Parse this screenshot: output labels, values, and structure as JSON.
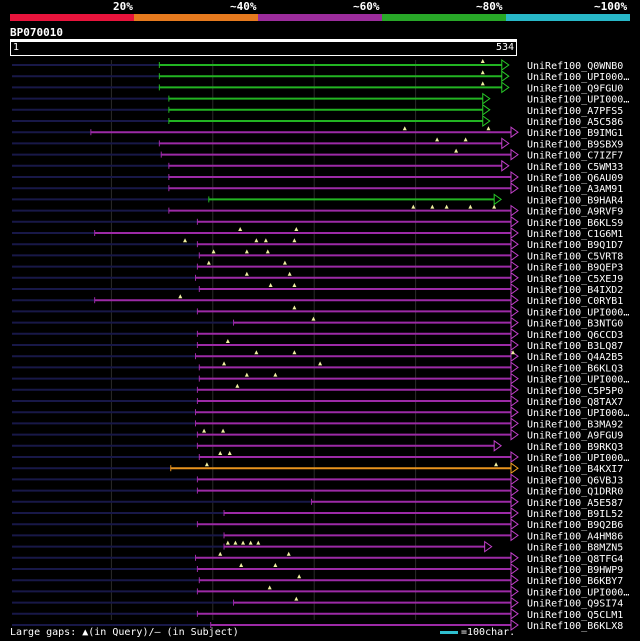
{
  "scale": {
    "ticks": [
      "20%",
      "~40%",
      "~60%",
      "~80%",
      "~100%"
    ],
    "colors": [
      "#e8143c",
      "#e67a1e",
      "#9c2c9c",
      "#28a828",
      "#28b8c8"
    ]
  },
  "query": {
    "name": "BP070010",
    "start": "1",
    "end": "534",
    "length": 534
  },
  "legend": {
    "gaps_text": "Large gaps: ▲(in Query)/– (in Subject)",
    "scale_text": "=100char."
  },
  "hits": [
    {
      "name": "UniRef100_Q0WNB0",
      "q_start": 158,
      "q_end": 518,
      "color": "green",
      "arrow": "green",
      "marks": [
        498
      ]
    },
    {
      "name": "UniRef100_UPI000…",
      "q_start": 158,
      "q_end": 518,
      "color": "green",
      "arrow": "green",
      "marks": [
        498
      ]
    },
    {
      "name": "UniRef100_Q9FGU0",
      "q_start": 158,
      "q_end": 518,
      "color": "green",
      "arrow": "green",
      "marks": [
        498
      ]
    },
    {
      "name": "UniRef100_UPI000…",
      "q_start": 168,
      "q_end": 498,
      "color": "green",
      "arrow": "green",
      "marks": []
    },
    {
      "name": "UniRef100_A7PFS5",
      "q_start": 168,
      "q_end": 498,
      "color": "green",
      "arrow": "green",
      "marks": []
    },
    {
      "name": "UniRef100_A5C586",
      "q_start": 168,
      "q_end": 498,
      "color": "green",
      "arrow": "green",
      "marks": []
    },
    {
      "name": "UniRef100_B9IMG1",
      "q_start": 86,
      "q_end": 534,
      "color": "purple",
      "arrow": "magenta",
      "marks": [
        416,
        504
      ]
    },
    {
      "name": "UniRef100_B9SBX9",
      "q_start": 158,
      "q_end": 518,
      "color": "purple",
      "arrow": "magenta",
      "marks": [
        450,
        480
      ]
    },
    {
      "name": "UniRef100_C7IZF7",
      "q_start": 160,
      "q_end": 534,
      "color": "purple",
      "arrow": "magenta",
      "marks": [
        470
      ]
    },
    {
      "name": "UniRef100_C5WM33",
      "q_start": 168,
      "q_end": 518,
      "color": "purple",
      "arrow": "magenta",
      "marks": []
    },
    {
      "name": "UniRef100_Q6AU09",
      "q_start": 168,
      "q_end": 534,
      "color": "purple",
      "arrow": "magenta",
      "marks": []
    },
    {
      "name": "UniRef100_A3AM91",
      "q_start": 168,
      "q_end": 534,
      "color": "purple",
      "arrow": "magenta",
      "marks": []
    },
    {
      "name": "UniRef100_B9HAR4",
      "q_start": 210,
      "q_end": 510,
      "color": "green",
      "arrow": "green",
      "marks": []
    },
    {
      "name": "UniRef100_A9RVF9",
      "q_start": 168,
      "q_end": 540,
      "color": "purple",
      "arrow": "magenta",
      "marks": [
        425,
        445,
        460,
        485,
        510
      ]
    },
    {
      "name": "UniRef100_B6KLS9",
      "q_start": 198,
      "q_end": 540,
      "color": "purple",
      "arrow": "magenta",
      "marks": []
    },
    {
      "name": "UniRef100_C1G6M1",
      "q_start": 90,
      "q_end": 534,
      "color": "purple",
      "arrow": "magenta",
      "marks": [
        243,
        302
      ]
    },
    {
      "name": "UniRef100_B9Q1D7",
      "q_start": 198,
      "q_end": 534,
      "color": "purple",
      "arrow": "magenta",
      "marks": [
        185,
        260,
        270,
        300
      ]
    },
    {
      "name": "UniRef100_C5VRT8",
      "q_start": 200,
      "q_end": 534,
      "color": "purple",
      "arrow": "magenta",
      "marks": [
        215,
        250,
        272
      ]
    },
    {
      "name": "UniRef100_B9QEP3",
      "q_start": 198,
      "q_end": 534,
      "color": "purple",
      "arrow": "magenta",
      "marks": [
        210,
        290
      ]
    },
    {
      "name": "UniRef100_C5XEJ9",
      "q_start": 196,
      "q_end": 534,
      "color": "purple",
      "arrow": "magenta",
      "marks": [
        250,
        295
      ]
    },
    {
      "name": "UniRef100_B4IXD2",
      "q_start": 200,
      "q_end": 534,
      "color": "purple",
      "arrow": "magenta",
      "marks": [
        275,
        300
      ]
    },
    {
      "name": "UniRef100_C0RYB1",
      "q_start": 90,
      "q_end": 534,
      "color": "purple",
      "arrow": "magenta",
      "marks": [
        180
      ]
    },
    {
      "name": "UniRef100_UPI000…",
      "q_start": 198,
      "q_end": 534,
      "color": "purple",
      "arrow": "magenta",
      "marks": [
        300
      ]
    },
    {
      "name": "UniRef100_B3NTG0",
      "q_start": 236,
      "q_end": 534,
      "color": "purple",
      "arrow": "magenta",
      "marks": [
        320
      ]
    },
    {
      "name": "UniRef100_Q6CCD3",
      "q_start": 198,
      "q_end": 534,
      "color": "purple",
      "arrow": "magenta",
      "marks": []
    },
    {
      "name": "UniRef100_B3LQ87",
      "q_start": 198,
      "q_end": 534,
      "color": "purple",
      "arrow": "magenta",
      "marks": [
        230
      ]
    },
    {
      "name": "UniRef100_Q4A2B5",
      "q_start": 196,
      "q_end": 534,
      "color": "purple",
      "arrow": "magenta",
      "marks": [
        260,
        300,
        530
      ]
    },
    {
      "name": "UniRef100_B6KLQ3",
      "q_start": 200,
      "q_end": 534,
      "color": "purple",
      "arrow": "magenta",
      "marks": [
        226,
        327
      ]
    },
    {
      "name": "UniRef100_UPI000…",
      "q_start": 200,
      "q_end": 534,
      "color": "purple",
      "arrow": "magenta",
      "marks": [
        250,
        280
      ]
    },
    {
      "name": "UniRef100_C5P5P0",
      "q_start": 198,
      "q_end": 534,
      "color": "purple",
      "arrow": "magenta",
      "marks": [
        240
      ]
    },
    {
      "name": "UniRef100_Q8TAX7",
      "q_start": 198,
      "q_end": 534,
      "color": "purple",
      "arrow": "magenta",
      "marks": []
    },
    {
      "name": "UniRef100_UPI000…",
      "q_start": 196,
      "q_end": 534,
      "color": "purple",
      "arrow": "magenta",
      "marks": []
    },
    {
      "name": "UniRef100_B3MA92",
      "q_start": 196,
      "q_end": 534,
      "color": "purple",
      "arrow": "magenta",
      "marks": []
    },
    {
      "name": "UniRef100_A9FGU9",
      "q_start": 198,
      "q_end": 534,
      "color": "purple",
      "arrow": "magenta",
      "marks": [
        205,
        225
      ]
    },
    {
      "name": "UniRef100_B9RKQ3",
      "q_start": 198,
      "q_end": 510,
      "color": "purple",
      "arrow": "magenta",
      "marks": []
    },
    {
      "name": "UniRef100_UPI000…",
      "q_start": 200,
      "q_end": 534,
      "color": "purple",
      "arrow": "magenta",
      "marks": [
        222,
        232
      ]
    },
    {
      "name": "UniRef100_B4KXI7",
      "q_start": 170,
      "q_end": 534,
      "color": "orange",
      "arrow": "orange",
      "marks": [
        208,
        512
      ]
    },
    {
      "name": "UniRef100_Q6VBJ3",
      "q_start": 198,
      "q_end": 534,
      "color": "purple",
      "arrow": "magenta",
      "marks": []
    },
    {
      "name": "UniRef100_Q1DRR0",
      "q_start": 198,
      "q_end": 534,
      "color": "purple",
      "arrow": "magenta",
      "marks": []
    },
    {
      "name": "UniRef100_A5E587",
      "q_start": 318,
      "q_end": 534,
      "color": "purple",
      "arrow": "magenta",
      "marks": []
    },
    {
      "name": "UniRef100_B9IL52",
      "q_start": 226,
      "q_end": 534,
      "color": "purple",
      "arrow": "magenta",
      "marks": []
    },
    {
      "name": "UniRef100_B9Q2B6",
      "q_start": 198,
      "q_end": 534,
      "color": "purple",
      "arrow": "magenta",
      "marks": []
    },
    {
      "name": "UniRef100_A4HM86",
      "q_start": 226,
      "q_end": 534,
      "color": "purple",
      "arrow": "magenta",
      "marks": []
    },
    {
      "name": "UniRef100_B8MZN5",
      "q_start": 226,
      "q_end": 500,
      "color": "purple",
      "arrow": "magenta",
      "marks": [
        230,
        238,
        246,
        254,
        262
      ]
    },
    {
      "name": "UniRef100_Q8TFG4",
      "q_start": 196,
      "q_end": 534,
      "color": "purple",
      "arrow": "magenta",
      "marks": [
        222,
        294
      ]
    },
    {
      "name": "UniRef100_B9HWP9",
      "q_start": 198,
      "q_end": 534,
      "color": "purple",
      "arrow": "magenta",
      "marks": [
        244,
        280
      ]
    },
    {
      "name": "UniRef100_B6KBY7",
      "q_start": 200,
      "q_end": 534,
      "color": "purple",
      "arrow": "magenta",
      "marks": [
        305
      ]
    },
    {
      "name": "UniRef100_UPI000…",
      "q_start": 198,
      "q_end": 534,
      "color": "purple",
      "arrow": "magenta",
      "marks": [
        274
      ]
    },
    {
      "name": "UniRef100_Q9SI74",
      "q_start": 236,
      "q_end": 534,
      "color": "purple",
      "arrow": "magenta",
      "marks": [
        302
      ]
    },
    {
      "name": "UniRef100_Q5CLM1",
      "q_start": 198,
      "q_end": 534,
      "color": "purple",
      "arrow": "magenta",
      "marks": []
    },
    {
      "name": "UniRef100_B6KLX8",
      "q_start": 212,
      "q_end": 534,
      "color": "purple",
      "arrow": "magenta",
      "marks": []
    }
  ],
  "line_colors": {
    "green": "#22b422",
    "purple": "#9c2aa6",
    "orange": "#e8941e",
    "dark": "#181848"
  },
  "arrow_colors": {
    "green": "#28c828",
    "magenta": "#c040c8",
    "orange": "#f0a020"
  },
  "mark_color": "#f0f0a0"
}
